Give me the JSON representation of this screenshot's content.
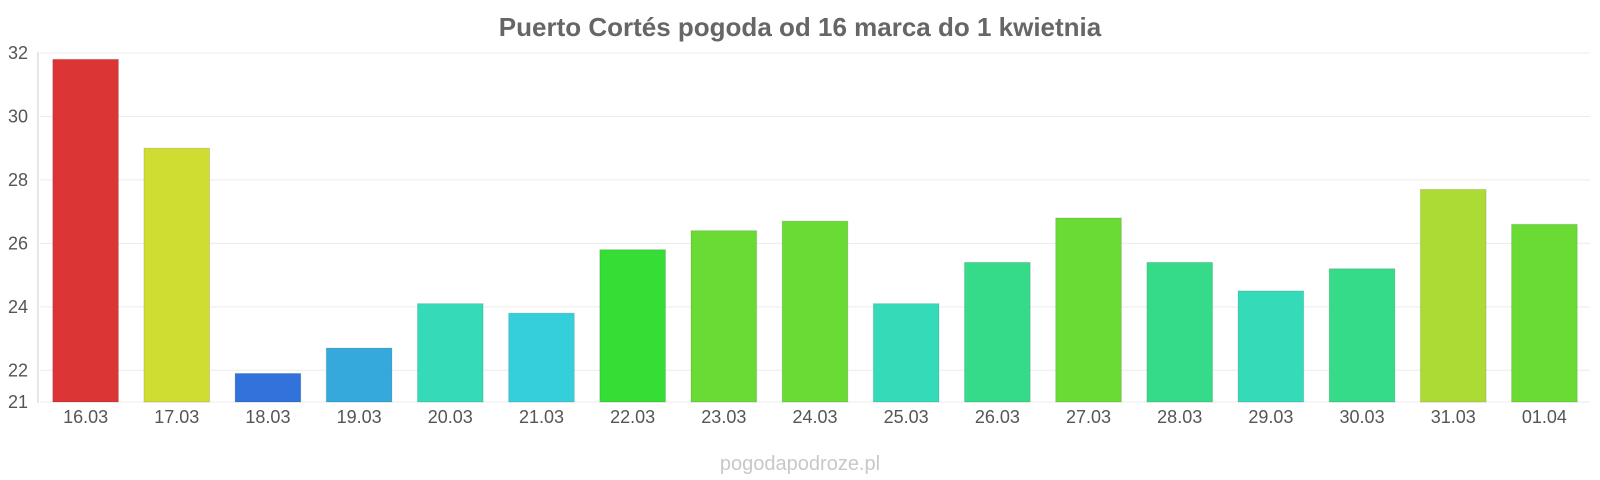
{
  "chart_data": {
    "type": "bar",
    "title": "Puerto Cortés pogoda od 16 marca do 1 kwietnia",
    "xlabel": "",
    "ylabel": "",
    "ylim": [
      21,
      32
    ],
    "yticks": [
      32,
      30,
      28,
      26,
      24,
      22,
      21
    ],
    "grid": true,
    "categories": [
      "16.03",
      "17.03",
      "18.03",
      "19.03",
      "20.03",
      "21.03",
      "22.03",
      "23.03",
      "24.03",
      "25.03",
      "26.03",
      "27.03",
      "28.03",
      "29.03",
      "30.03",
      "31.03",
      "01.04"
    ],
    "values": [
      31.8,
      29.0,
      21.9,
      22.7,
      24.1,
      23.8,
      25.8,
      26.4,
      26.7,
      24.1,
      25.4,
      26.8,
      25.4,
      24.5,
      25.2,
      27.7,
      26.6
    ],
    "colors": [
      "#dc3535",
      "#cfdd33",
      "#3273db",
      "#35a9db",
      "#35dbb9",
      "#35cfdb",
      "#35dd35",
      "#6adb35",
      "#6adb35",
      "#35dbb9",
      "#35db88",
      "#6adb35",
      "#35db88",
      "#35dbb9",
      "#35db88",
      "#addb35",
      "#6adb35"
    ]
  },
  "watermark": "pogodapodroze.pl"
}
